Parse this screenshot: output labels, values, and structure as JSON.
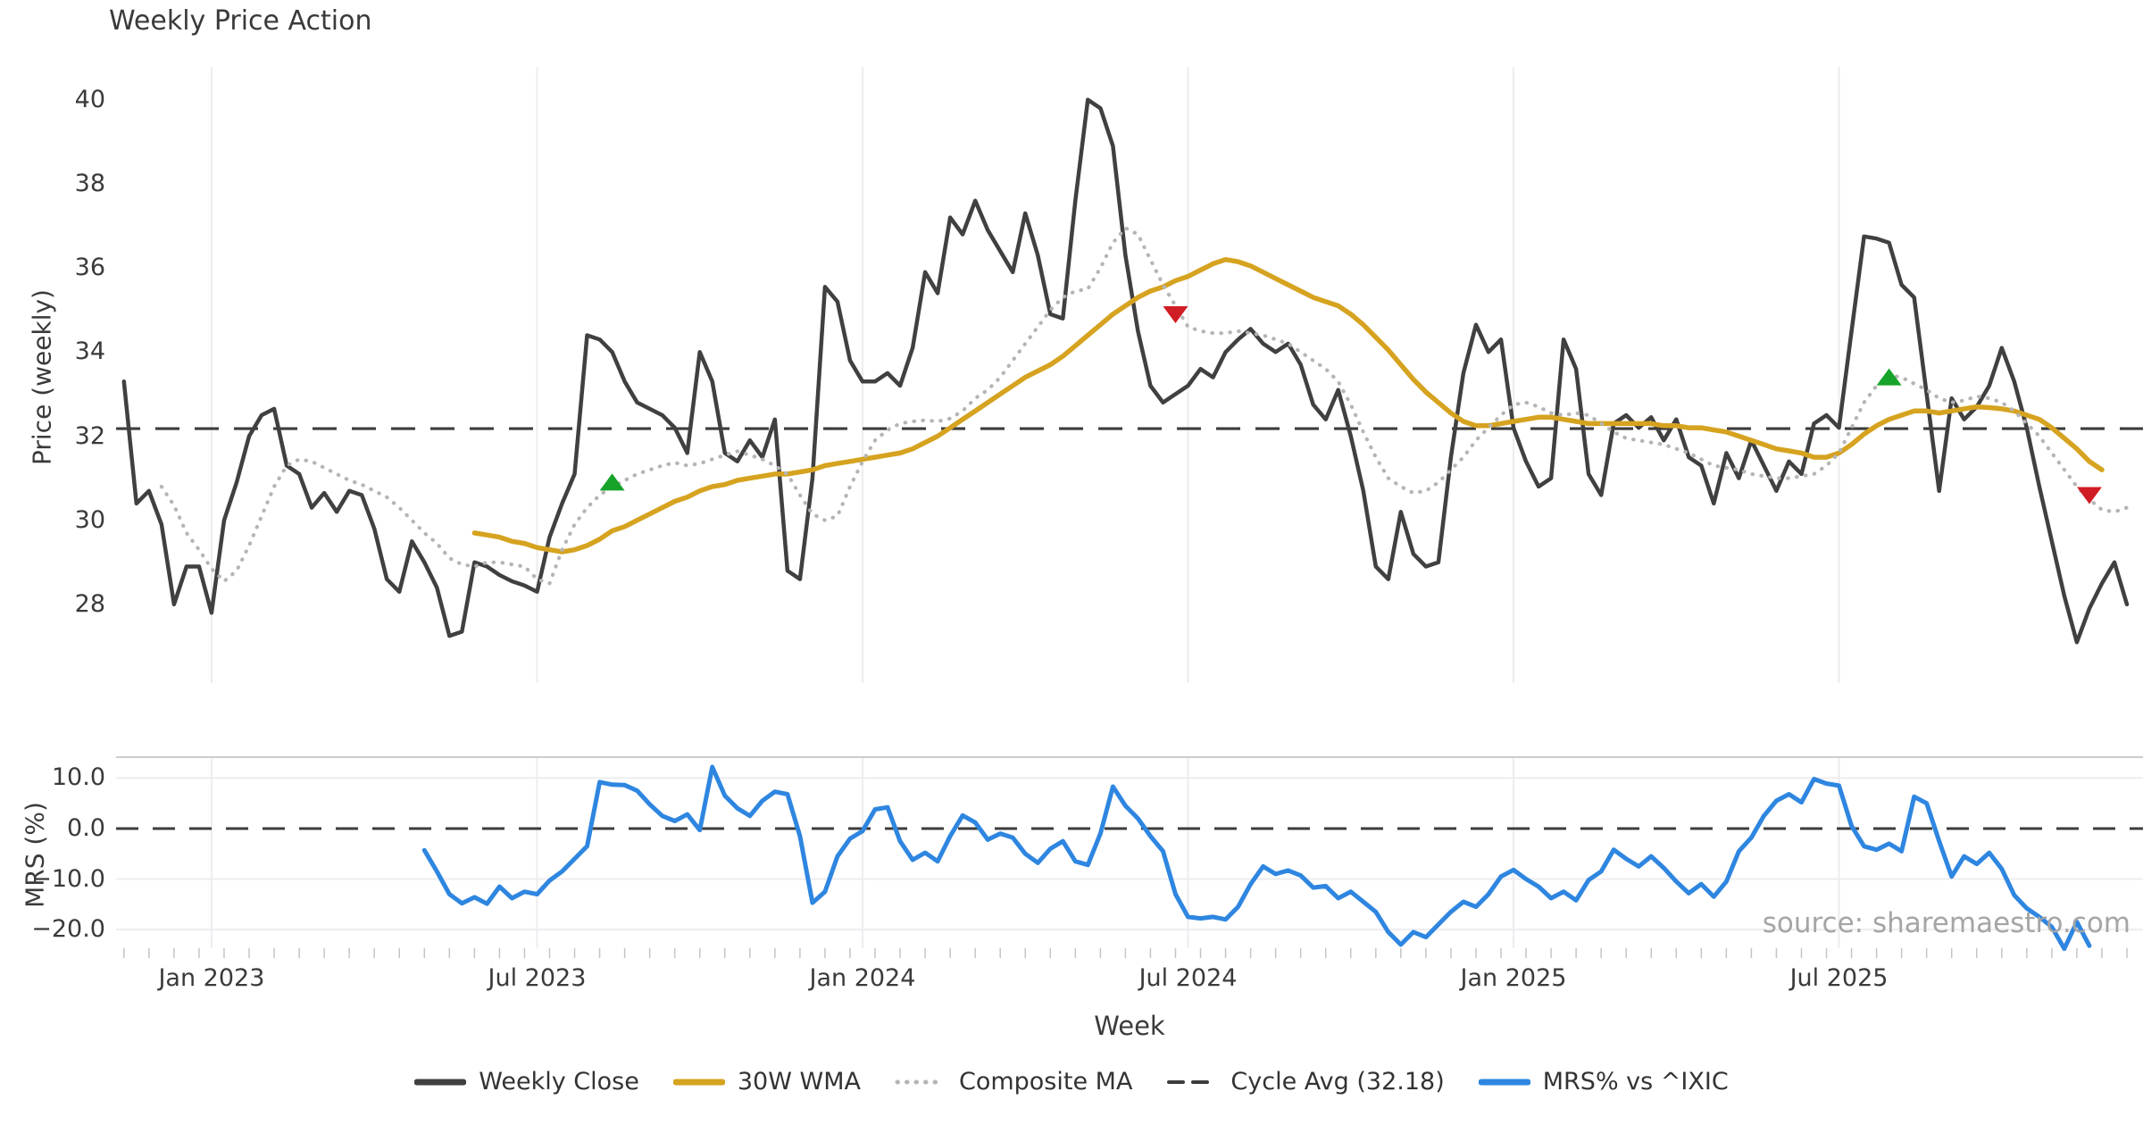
{
  "title": "Weekly Price Action",
  "xlabel": "Week",
  "source": "source: sharemaestro.com",
  "top_panel": {
    "ylabel": "Price (weekly)",
    "yticks": [
      28,
      30,
      32,
      34,
      36,
      38,
      40
    ],
    "ylim": [
      26.13,
      40.78
    ]
  },
  "bottom_panel": {
    "ylabel": "MRS (%)",
    "yticks": [
      10,
      0,
      -10,
      -20
    ],
    "ytick_labels": [
      "10.0",
      "0.0",
      "−10.0",
      "−20.0"
    ],
    "ylim": [
      -23.7,
      14.14
    ]
  },
  "xticks": [
    {
      "week": 7,
      "label": "Jan 2023"
    },
    {
      "week": 33,
      "label": "Jul 2023"
    },
    {
      "week": 59,
      "label": "Jan 2024"
    },
    {
      "week": 85,
      "label": "Jul 2024"
    },
    {
      "week": 111,
      "label": "Jan 2025"
    },
    {
      "week": 137,
      "label": "Jul 2025"
    }
  ],
  "legend": [
    {
      "label": "Weekly Close",
      "color": "#404040",
      "style": "solid"
    },
    {
      "label": "30W WMA",
      "color": "#d6a320",
      "style": "solid"
    },
    {
      "label": "Composite MA",
      "color": "#b5b5b5",
      "style": "dotted"
    },
    {
      "label": "Cycle Avg (32.18)",
      "color": "#3c3c3c",
      "style": "dashed"
    },
    {
      "label": "MRS% vs ^IXIC",
      "color": "#2e86e0",
      "style": "solid"
    }
  ],
  "colors": {
    "close": "#404040",
    "wma": "#d6a320",
    "composite": "#b5b5b5",
    "cycle": "#3c3c3c",
    "mrs": "#2e86e0",
    "buy_marker": "#16a32a",
    "sell_marker": "#d01c24",
    "gridline": "#ededf1",
    "panel_border": "#cccccf",
    "minor_tick": "#c4c4c8"
  },
  "chart_data": {
    "type": "line",
    "x_unit": "week_index",
    "total_weeks": 161,
    "cycle_avg": 32.18,
    "series": [
      {
        "name": "Weekly Close",
        "panel": "top",
        "style": "solid",
        "color": "#404040",
        "start_week": 0,
        "values": [
          33.3,
          30.4,
          30.7,
          29.9,
          28.0,
          28.9,
          28.9,
          27.8,
          30.0,
          30.9,
          32.0,
          32.5,
          32.65,
          31.3,
          31.1,
          30.3,
          30.65,
          30.2,
          30.7,
          30.6,
          29.8,
          28.6,
          28.3,
          29.5,
          29.0,
          28.4,
          27.25,
          27.35,
          29.0,
          28.9,
          28.7,
          28.55,
          28.45,
          28.3,
          29.6,
          30.4,
          31.1,
          34.4,
          34.3,
          34.0,
          33.3,
          32.8,
          32.65,
          32.5,
          32.2,
          31.6,
          34.0,
          33.3,
          31.6,
          31.4,
          31.9,
          31.5,
          32.4,
          28.8,
          28.6,
          31.0,
          35.55,
          35.2,
          33.8,
          33.3,
          33.3,
          33.5,
          33.2,
          34.1,
          35.9,
          35.4,
          37.2,
          36.8,
          37.6,
          36.9,
          36.4,
          35.9,
          37.3,
          36.3,
          34.9,
          34.8,
          37.6,
          40.0,
          39.8,
          38.9,
          36.3,
          34.5,
          33.2,
          32.8,
          33.0,
          33.2,
          33.6,
          33.4,
          34.0,
          34.3,
          34.55,
          34.2,
          34.0,
          34.2,
          33.7,
          32.75,
          32.4,
          33.1,
          32.0,
          30.7,
          28.9,
          28.6,
          30.2,
          29.2,
          28.9,
          29.0,
          31.5,
          33.5,
          34.65,
          34.0,
          34.3,
          32.2,
          31.4,
          30.8,
          31.0,
          34.3,
          33.6,
          31.1,
          30.6,
          32.3,
          32.5,
          32.2,
          32.45,
          31.9,
          32.4,
          31.5,
          31.3,
          30.4,
          31.6,
          31.0,
          31.9,
          31.3,
          30.7,
          31.4,
          31.1,
          32.3,
          32.5,
          32.2,
          34.5,
          36.75,
          36.7,
          36.6,
          35.6,
          35.3,
          33.0,
          30.7,
          32.9,
          32.4,
          32.7,
          33.2,
          34.1,
          33.3,
          32.2,
          30.8,
          29.5,
          28.2,
          27.1,
          27.9,
          28.5,
          29.0,
          28.0
        ]
      },
      {
        "name": "30W WMA",
        "panel": "top",
        "style": "solid",
        "color": "#d6a320",
        "start_week": 28,
        "values": [
          29.7,
          29.65,
          29.6,
          29.5,
          29.45,
          29.35,
          29.3,
          29.25,
          29.3,
          29.4,
          29.55,
          29.75,
          29.85,
          30.0,
          30.15,
          30.3,
          30.45,
          30.55,
          30.7,
          30.8,
          30.85,
          30.95,
          31.0,
          31.05,
          31.1,
          31.1,
          31.15,
          31.2,
          31.3,
          31.35,
          31.4,
          31.45,
          31.5,
          31.55,
          31.6,
          31.7,
          31.85,
          32.0,
          32.2,
          32.4,
          32.6,
          32.8,
          33.0,
          33.2,
          33.4,
          33.55,
          33.7,
          33.9,
          34.15,
          34.4,
          34.65,
          34.9,
          35.1,
          35.3,
          35.45,
          35.55,
          35.7,
          35.8,
          35.95,
          36.1,
          36.2,
          36.15,
          36.05,
          35.9,
          35.75,
          35.6,
          35.45,
          35.3,
          35.2,
          35.1,
          34.9,
          34.65,
          34.35,
          34.05,
          33.7,
          33.35,
          33.05,
          32.8,
          32.55,
          32.35,
          32.25,
          32.25,
          32.3,
          32.35,
          32.4,
          32.45,
          32.45,
          32.4,
          32.35,
          32.3,
          32.3,
          32.3,
          32.3,
          32.3,
          32.3,
          32.25,
          32.25,
          32.2,
          32.2,
          32.15,
          32.1,
          32.0,
          31.9,
          31.8,
          31.7,
          31.65,
          31.6,
          31.5,
          31.5,
          31.6,
          31.8,
          32.05,
          32.25,
          32.4,
          32.5,
          32.6,
          32.6,
          32.55,
          32.6,
          32.65,
          32.7,
          32.68,
          32.65,
          32.6,
          32.5,
          32.4,
          32.2,
          31.95,
          31.7,
          31.4,
          31.2
        ]
      },
      {
        "name": "Composite MA",
        "panel": "top",
        "style": "dotted",
        "color": "#b5b5b5",
        "start_week": 3,
        "values": [
          30.8,
          30.35,
          29.7,
          29.3,
          28.85,
          28.55,
          28.8,
          29.4,
          30.1,
          30.8,
          31.3,
          31.45,
          31.4,
          31.25,
          31.1,
          30.95,
          30.85,
          30.7,
          30.55,
          30.3,
          30.0,
          29.7,
          29.45,
          29.1,
          28.95,
          28.9,
          29.0,
          29.0,
          28.95,
          28.9,
          28.6,
          28.5,
          29.3,
          29.9,
          30.3,
          30.6,
          30.8,
          30.95,
          31.1,
          31.2,
          31.3,
          31.37,
          31.3,
          31.35,
          31.45,
          31.55,
          31.64,
          31.55,
          31.45,
          31.3,
          31.1,
          30.6,
          30.15,
          30.0,
          30.1,
          30.8,
          31.4,
          31.9,
          32.15,
          32.3,
          32.35,
          32.38,
          32.35,
          32.42,
          32.6,
          32.9,
          33.1,
          33.4,
          33.8,
          34.2,
          34.6,
          35.0,
          35.3,
          35.45,
          35.5,
          36.0,
          36.6,
          36.95,
          36.8,
          36.2,
          35.6,
          35.1,
          34.6,
          34.5,
          34.45,
          34.45,
          34.5,
          34.45,
          34.4,
          34.3,
          34.2,
          34.0,
          33.8,
          33.6,
          33.3,
          32.75,
          32.1,
          31.5,
          31.0,
          30.8,
          30.65,
          30.7,
          30.9,
          31.2,
          31.5,
          31.9,
          32.2,
          32.5,
          32.75,
          32.8,
          32.7,
          32.55,
          32.5,
          32.55,
          32.5,
          32.3,
          32.1,
          31.95,
          31.9,
          31.85,
          31.8,
          31.7,
          31.6,
          31.45,
          31.3,
          31.25,
          31.2,
          31.1,
          31.05,
          31.0,
          31.0,
          31.05,
          31.1,
          31.3,
          31.6,
          32.2,
          32.8,
          33.2,
          33.45,
          33.4,
          33.25,
          33.1,
          32.9,
          32.8,
          32.85,
          32.95,
          32.9,
          32.8,
          32.6,
          32.3,
          32.0,
          31.6,
          31.2,
          30.8,
          30.5,
          30.25,
          30.2,
          30.3
        ]
      },
      {
        "name": "MRS% vs ^IXIC",
        "panel": "bottom",
        "style": "solid",
        "color": "#2e86e0",
        "start_week": 24,
        "values": [
          -4.3,
          -8.5,
          -13.0,
          -14.8,
          -13.6,
          -14.9,
          -11.5,
          -13.8,
          -12.5,
          -13.0,
          -10.3,
          -8.5,
          -6.0,
          -3.5,
          9.2,
          8.7,
          8.6,
          7.5,
          4.8,
          2.5,
          1.5,
          2.8,
          -0.3,
          12.2,
          6.5,
          4.0,
          2.5,
          5.5,
          7.3,
          6.8,
          -1.5,
          -14.7,
          -12.5,
          -5.5,
          -2.0,
          -0.5,
          3.8,
          4.2,
          -2.5,
          -6.2,
          -4.8,
          -6.5,
          -1.5,
          2.6,
          1.2,
          -2.2,
          -1.0,
          -1.8,
          -5.0,
          -6.8,
          -4.0,
          -2.5,
          -6.5,
          -7.2,
          -1.0,
          8.3,
          4.5,
          2.0,
          -1.5,
          -4.5,
          -13.0,
          -17.5,
          -17.8,
          -17.5,
          -18.0,
          -15.5,
          -11.0,
          -7.5,
          -9.0,
          -8.3,
          -9.3,
          -11.7,
          -11.4,
          -13.8,
          -12.5,
          -14.5,
          -16.5,
          -20.5,
          -23.0,
          -20.5,
          -21.5,
          -19.0,
          -16.5,
          -14.5,
          -15.5,
          -13.0,
          -9.5,
          -8.2,
          -10.0,
          -11.5,
          -13.8,
          -12.5,
          -14.2,
          -10.2,
          -8.5,
          -4.2,
          -6.0,
          -7.5,
          -5.5,
          -7.8,
          -10.5,
          -12.8,
          -11.0,
          -13.5,
          -10.5,
          -4.5,
          -1.8,
          2.5,
          5.5,
          6.8,
          5.2,
          9.8,
          8.9,
          8.5,
          0.5,
          -3.5,
          -4.2,
          -3.0,
          -4.5,
          6.3,
          5.0,
          -2.5,
          -9.5,
          -5.5,
          -7.0,
          -4.8,
          -8.0,
          -13.2,
          -15.8,
          -17.5,
          -19.5,
          -23.8,
          -18.5,
          -23.2
        ]
      }
    ],
    "markers": {
      "buy": [
        {
          "week": 39,
          "price": 30.9
        },
        {
          "week": 141,
          "price": 33.4
        }
      ],
      "sell": [
        {
          "week": 84,
          "price": 34.9
        },
        {
          "week": 157,
          "price": 30.6
        }
      ]
    }
  }
}
